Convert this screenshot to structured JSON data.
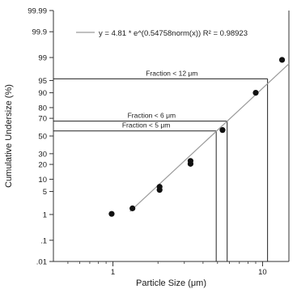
{
  "chart_data": {
    "type": "scatter",
    "xlabel": "Particle Size (μm)",
    "ylabel": "Cumulative Undersize (%)",
    "x_scale": "log",
    "y_scale": "probability",
    "xlim": [
      0.4,
      15
    ],
    "ylim": [
      0.01,
      99.99
    ],
    "x_ticks": [
      {
        "value": 1,
        "label": "1"
      },
      {
        "value": 10,
        "label": "10"
      }
    ],
    "y_ticks": [
      {
        "value": 0.01,
        "label": ".01"
      },
      {
        "value": 0.1,
        "label": ".1"
      },
      {
        "value": 1,
        "label": "1"
      },
      {
        "value": 5,
        "label": "5"
      },
      {
        "value": 10,
        "label": "10"
      },
      {
        "value": 20,
        "label": "20"
      },
      {
        "value": 30,
        "label": "30"
      },
      {
        "value": 50,
        "label": "50"
      },
      {
        "value": 70,
        "label": "70"
      },
      {
        "value": 80,
        "label": "80"
      },
      {
        "value": 90,
        "label": "90"
      },
      {
        "value": 95,
        "label": "95"
      },
      {
        "value": 99,
        "label": "99"
      },
      {
        "value": 99.9,
        "label": "99.9"
      },
      {
        "value": 99.99,
        "label": "99.99"
      }
    ],
    "points": [
      {
        "x": 0.98,
        "y": 1.05
      },
      {
        "x": 1.35,
        "y": 1.6
      },
      {
        "x": 2.05,
        "y": 5.5
      },
      {
        "x": 2.05,
        "y": 6.6
      },
      {
        "x": 3.3,
        "y": 20.5
      },
      {
        "x": 3.3,
        "y": 23
      },
      {
        "x": 5.4,
        "y": 57
      },
      {
        "x": 9.0,
        "y": 90
      },
      {
        "x": 13.5,
        "y": 98.8
      }
    ],
    "fit": {
      "legend": "y = 4.81 * e^(0.54758norm(x))    R² = 0.98923",
      "coef": 4.81,
      "slope": 0.54758,
      "x_range": [
        1.3,
        15
      ]
    },
    "annotations": [
      {
        "label": "Fraction < 12 μm",
        "x": 10.8,
        "y": 95.5
      },
      {
        "label": "Fraction < 6 μm",
        "x": 5.8,
        "y": 67
      },
      {
        "label": "Fraction < 5 μm",
        "x": 4.9,
        "y": 56
      }
    ],
    "grid": false,
    "legend_position": "top"
  }
}
